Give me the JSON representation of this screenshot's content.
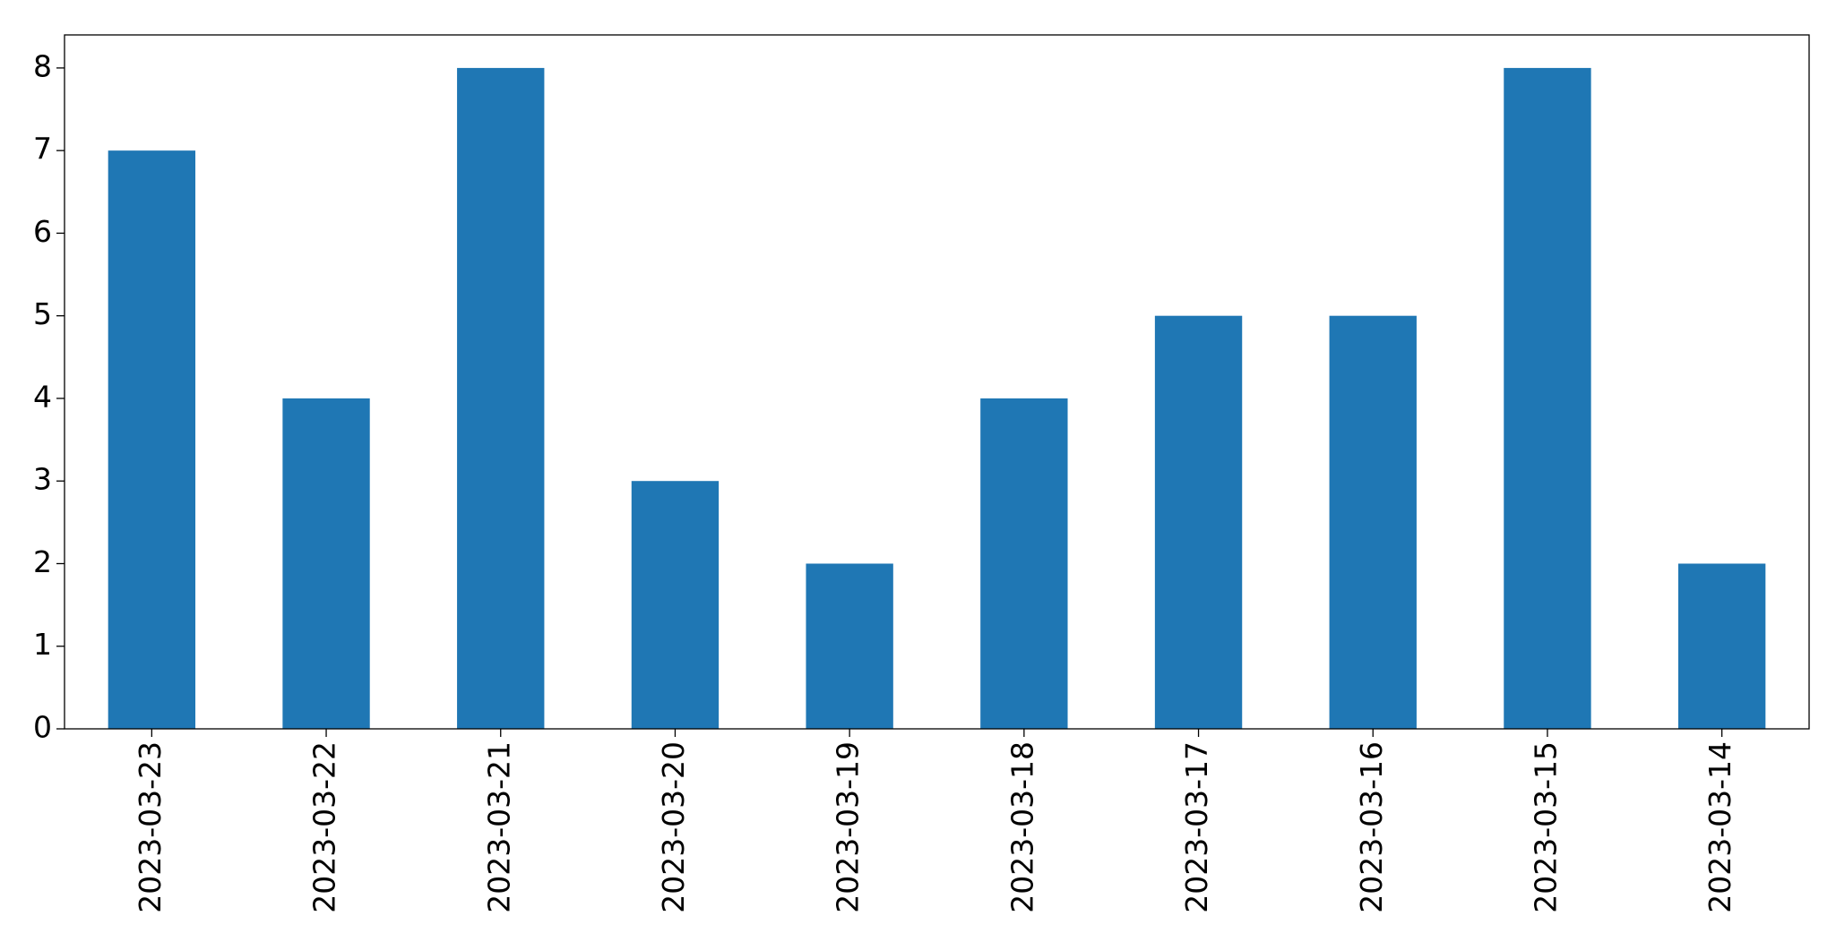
{
  "chart_data": {
    "type": "bar",
    "categories": [
      "2023-03-23",
      "2023-03-22",
      "2023-03-21",
      "2023-03-20",
      "2023-03-19",
      "2023-03-18",
      "2023-03-17",
      "2023-03-16",
      "2023-03-15",
      "2023-03-14"
    ],
    "values": [
      7,
      4,
      8,
      3,
      2,
      4,
      5,
      5,
      8,
      2
    ],
    "color": "#1f77b4",
    "ylim": [
      0,
      8.4
    ],
    "yticks": [
      0,
      1,
      2,
      3,
      4,
      5,
      6,
      7,
      8
    ],
    "grid": false
  }
}
